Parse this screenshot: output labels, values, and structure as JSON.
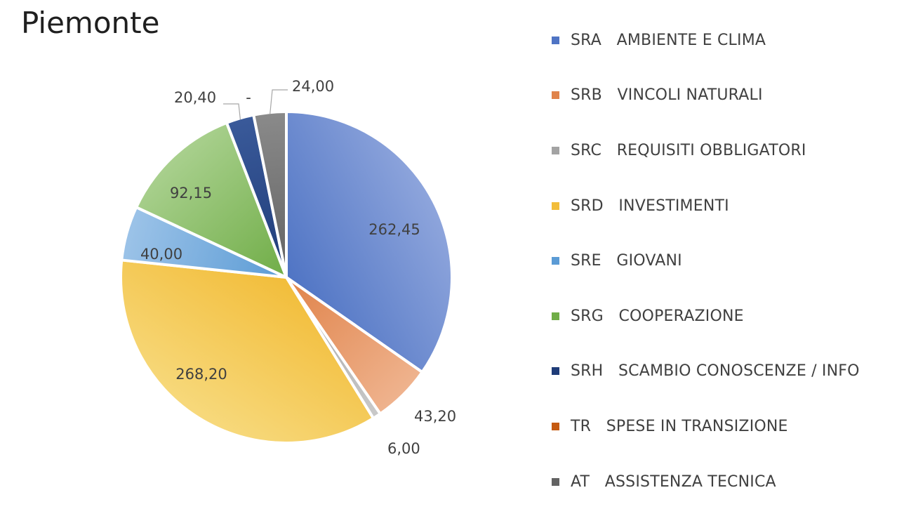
{
  "chart_data": {
    "type": "pie",
    "title": "Piemonte",
    "slices": [
      {
        "name": "SRA   AMBIENTE E CLIMA",
        "value": 262.45,
        "label": "262,45",
        "color": "#4f74c4",
        "color_light": "#8ea5dc"
      },
      {
        "name": "SRB   VINCOLI NATURALI",
        "value": 43.2,
        "label": "43,20",
        "color": "#e0834a",
        "color_light": "#efb38e"
      },
      {
        "name": "SRC   REQUISITI OBBLIGATORI",
        "value": 6.0,
        "label": "6,00",
        "color": "#a3a3a3",
        "color_light": "#c9c9c9"
      },
      {
        "name": "SRD   INVESTIMENTI",
        "value": 268.2,
        "label": "268,20",
        "color": "#f2bd3a",
        "color_light": "#f7d97c"
      },
      {
        "name": "SRE   GIOVANI",
        "value": 40.0,
        "label": "40,00",
        "color": "#5b9bd5",
        "color_light": "#9cc3e8"
      },
      {
        "name": "SRG   COOPERAZIONE",
        "value": 92.15,
        "label": "92,15",
        "color": "#70ad47",
        "color_light": "#a9d08e"
      },
      {
        "name": "SRH   SCAMBIO CONOSCENZE / INFO",
        "value": 20.4,
        "label": "20,40",
        "color": "#1f3c78",
        "color_light": "#3a5a9a"
      },
      {
        "name": "TR   SPESE IN TRANSIZIONE",
        "value": 0,
        "label": "-",
        "color": "#c55a11",
        "color_light": "#d8814a"
      },
      {
        "name": "AT   ASSISTENZA TECNICA",
        "value": 24.0,
        "label": "24,00",
        "color": "#636363",
        "color_light": "#8a8a8a"
      }
    ],
    "legend_position": "right"
  }
}
